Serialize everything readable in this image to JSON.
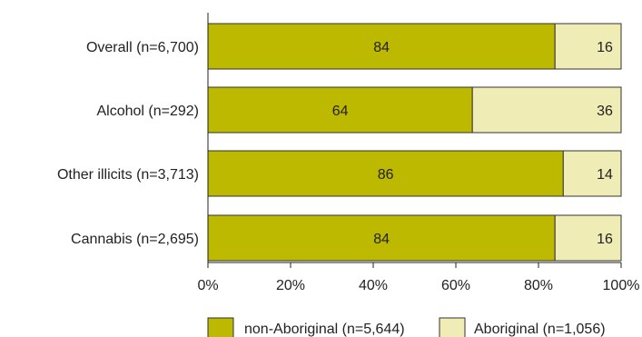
{
  "chart_data": {
    "type": "bar",
    "orientation": "horizontal",
    "stacked": true,
    "categories": [
      "Overall (n=6,700)",
      "Alcohol (n=292)",
      "Other illicits (n=3,713)",
      "Cannabis (n=2,695)"
    ],
    "series": [
      {
        "name": "non-Aboriginal (n=5,644)",
        "values": [
          84,
          64,
          86,
          84
        ],
        "color": "#bdb800"
      },
      {
        "name": "Aboriginal (n=1,056)",
        "values": [
          16,
          36,
          14,
          16
        ],
        "color": "#efecb6"
      }
    ],
    "xlim": [
      0,
      100
    ],
    "xticks": [
      "0%",
      "20%",
      "40%",
      "60%",
      "80%",
      "100%"
    ],
    "grid": false,
    "legend_position": "bottom",
    "title": "",
    "xlabel": "",
    "ylabel": ""
  }
}
